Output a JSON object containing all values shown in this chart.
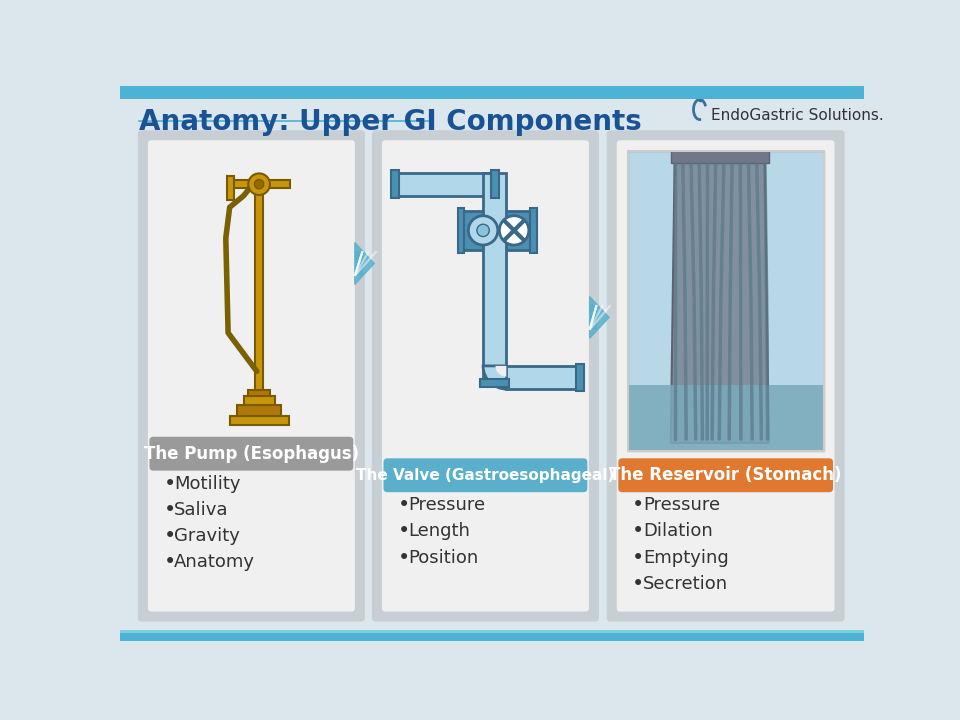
{
  "title": "Anatomy: Upper GI Components",
  "bg_top_color": "#4db3d4",
  "bg_main_color": "#dce6ed",
  "bg_bottom_color": "#4db3d4",
  "title_color": "#1a5296",
  "title_fontsize": 20,
  "panel1_label": "The Pump (Esophagus)",
  "panel1_label_bg": "#9a9a9a",
  "panel1_bullets": [
    "Motility",
    "Saliva",
    "Gravity",
    "Anatomy"
  ],
  "panel2_label": "The Valve (Gastroesophageal)",
  "panel2_label_bg": "#5ab0cc",
  "panel2_bullets": [
    "Pressure",
    "Length",
    "Position"
  ],
  "panel3_label": "The Reservoir (Stomach)",
  "panel3_label_bg": "#e07830",
  "panel3_bullets": [
    "Pressure",
    "Dilation",
    "Emptying",
    "Secretion"
  ],
  "panel_bg": "#c8cfd4",
  "inner_bg": "#f0f0f0",
  "arrow_color": "#5ab0cc",
  "bullet_color": "#333333",
  "bullet_fontsize": 13,
  "label_fontsize": 12,
  "label_text_color": "white",
  "logo_text": "EndoGastric Solutions.",
  "logo_color": "#333333",
  "logo_fontsize": 11
}
